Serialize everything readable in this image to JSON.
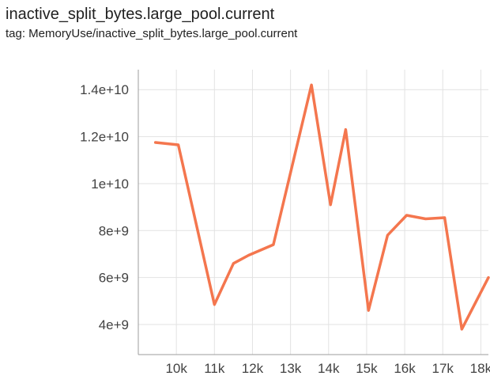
{
  "header": {
    "title": "inactive_split_bytes.large_pool.current",
    "subtitle": "tag: MemoryUse/inactive_split_bytes.large_pool.current"
  },
  "chart_data": {
    "type": "line",
    "title": "inactive_split_bytes.large_pool.current",
    "tag": "MemoryUse/inactive_split_bytes.large_pool.current",
    "xlabel": "",
    "ylabel": "",
    "grid": true,
    "legend": false,
    "xlim": [
      9000,
      18200
    ],
    "ylim": [
      2720000000.0,
      14850000000.0
    ],
    "x_ticks": [
      10000,
      11000,
      12000,
      13000,
      14000,
      15000,
      16000,
      17000,
      18000
    ],
    "x_tick_labels": [
      "10k",
      "11k",
      "12k",
      "13k",
      "14k",
      "15k",
      "16k",
      "17k",
      "18k"
    ],
    "y_ticks": [
      4000000000.0,
      6000000000.0,
      8000000000.0,
      10000000000.0,
      12000000000.0,
      14000000000.0
    ],
    "y_tick_labels": [
      "4e+9",
      "6e+9",
      "8e+9",
      "1e+10",
      "1.2e+10",
      "1.4e+10"
    ],
    "grid_color": "#e2e2e2",
    "axis_color": "#9e9e9e",
    "tick_color": "#424242",
    "series": [
      {
        "name": "inactive_split_bytes.large_pool.current",
        "color": "#f4764e",
        "x": [
          9450,
          10050,
          11000,
          11500,
          11900,
          12550,
          13550,
          14050,
          14450,
          15050,
          15550,
          16050,
          16550,
          17050,
          17500,
          18200
        ],
        "y": [
          11750000000.0,
          11650000000.0,
          4850000000.0,
          6600000000.0,
          6950000000.0,
          7400000000.0,
          14200000000.0,
          9100000000.0,
          12300000000.0,
          4600000000.0,
          7800000000.0,
          8650000000.0,
          8500000000.0,
          8550000000.0,
          3800000000.0,
          6000000000.0
        ]
      }
    ]
  }
}
